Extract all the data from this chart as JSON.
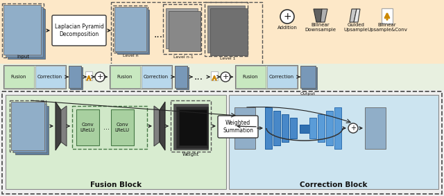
{
  "bg_top": "#fde8c8",
  "bg_bottom": "#f0f0f0",
  "bg_pipeline": "#e8f0e0",
  "bg_fusion_block": "#d8ecd0",
  "bg_correction_block": "#cce4f0",
  "fusion_half_fc": "#c8e8c0",
  "correction_half_fc": "#b8d8ec",
  "conv_block_fc": "#a8d0a0",
  "conv_dashed_fc": "#d0e8c8",
  "orange": "#cc8800",
  "dark_gray": "#404040",
  "mid_gray": "#888888",
  "light_gray": "#c8c8c8",
  "image_blue1": "#90aec8",
  "image_blue2": "#7898b8",
  "image_blue3": "#6080a0",
  "input_label": "Input",
  "output_label": "Output",
  "laplacian_label": "Laplacian Pyramid\nDecomposition",
  "level_labels": [
    "Level n",
    "Level n-1",
    "Level 1"
  ],
  "addition_label": "Addition",
  "bilinear_down_label": "Bilinear\nDownsample",
  "guided_up_label": "Guided\nUpsample",
  "bilinear_up_label": "Bilinear\nUpsample&Conv",
  "fusion_label": "Fusion",
  "correction_label": "Correction",
  "conv_label": "Conv\nLReLU",
  "dots": "...",
  "weighted_label": "Weighted\nSummation",
  "weight_label": "Weight",
  "title_fusion": "Fusion Block",
  "title_correction": "Correction Block"
}
